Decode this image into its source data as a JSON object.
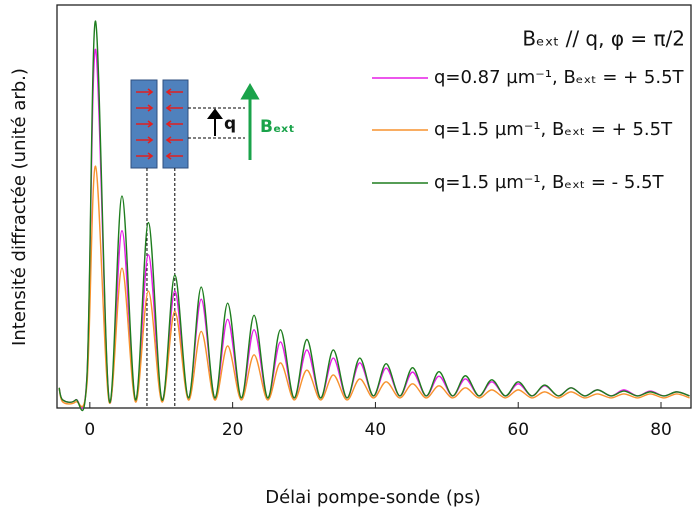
{
  "chart_data": {
    "type": "line",
    "annotation": "Bₑₓₜ // q, φ = π/2",
    "inset_labels": [
      "q",
      "Bₑₓₜ"
    ],
    "xlabel": "Délai pompe-sonde (ps)",
    "ylabel": "Intensité diffractée (unité arb.)",
    "xlim": [
      -4.6,
      84.2
    ],
    "xticks": [
      0,
      20,
      40,
      60,
      80
    ],
    "ylim": [
      0,
      100
    ],
    "vlines": [
      8.0,
      11.9
    ],
    "x": [
      -4.3,
      -3.8,
      -2,
      -0.4,
      0.8,
      2.7,
      4.5,
      6.4,
      8.2,
      10.1,
      11.9,
      13.8,
      15.6,
      17.5,
      19.3,
      21.2,
      23.0,
      24.9,
      26.7,
      28.6,
      30.4,
      32.3,
      34.1,
      36.0,
      37.8,
      39.7,
      41.5,
      43.4,
      45.2,
      47.1,
      48.9,
      50.8,
      52.6,
      54.5,
      56.3,
      58.2,
      60.0,
      61.9,
      63.7,
      65.6,
      67.4,
      69.3,
      71.1,
      73.0,
      74.8,
      76.7,
      78.5,
      80.4,
      82.2,
      84.0
    ],
    "series": [
      {
        "name": "q=0.87 µm⁻¹, Bₑₓₜ = + 5.5T",
        "color": "#e61ee6",
        "values": [
          5,
          2,
          2,
          8,
          89,
          2,
          44,
          2,
          38,
          2,
          29,
          2.5,
          27,
          2.5,
          22,
          2.5,
          19.4,
          2.5,
          16.4,
          2.5,
          14.4,
          2.5,
          12.4,
          2.5,
          11.2,
          3,
          9.9,
          3,
          8.9,
          3,
          7.9,
          3,
          7.2,
          3,
          6.5,
          3,
          6,
          3,
          5.5,
          3,
          5,
          3,
          4.5,
          3,
          4.5,
          3,
          4.2,
          3,
          4,
          3
        ]
      },
      {
        "name": "q=1.5 µm⁻¹, Bₑₓₜ = + 5.5T",
        "color": "#f7922e",
        "values": [
          5,
          1.5,
          1.5,
          6,
          60,
          1.5,
          34.7,
          1.5,
          29,
          1.5,
          24,
          2,
          19,
          2,
          15.4,
          2,
          13.2,
          2,
          11.2,
          2,
          9.4,
          2,
          8.2,
          2,
          7.2,
          2.5,
          6.5,
          2.5,
          6,
          2.5,
          5.5,
          2.5,
          5,
          2.5,
          4.5,
          2.5,
          4.5,
          2.5,
          4,
          2.5,
          4,
          2.5,
          3.5,
          2.5,
          3.5,
          2.5,
          3.5,
          2.5,
          3.5,
          2.5
        ]
      },
      {
        "name": "q=1.5 µm⁻¹, Bₑₓₜ = - 5.5T",
        "color": "#1e7d1e",
        "values": [
          5,
          2,
          2,
          8,
          96,
          2,
          52.6,
          2,
          46,
          2,
          33,
          2.5,
          30,
          2.5,
          26,
          2.5,
          23,
          2.5,
          19.4,
          2.5,
          17,
          2.5,
          14.4,
          2.5,
          12.4,
          3,
          11,
          3,
          10,
          3,
          9,
          3,
          8,
          3,
          7,
          3,
          6.5,
          3,
          5.7,
          3,
          5,
          3,
          4.5,
          3,
          4.2,
          3,
          4,
          3,
          4,
          3
        ]
      }
    ]
  }
}
